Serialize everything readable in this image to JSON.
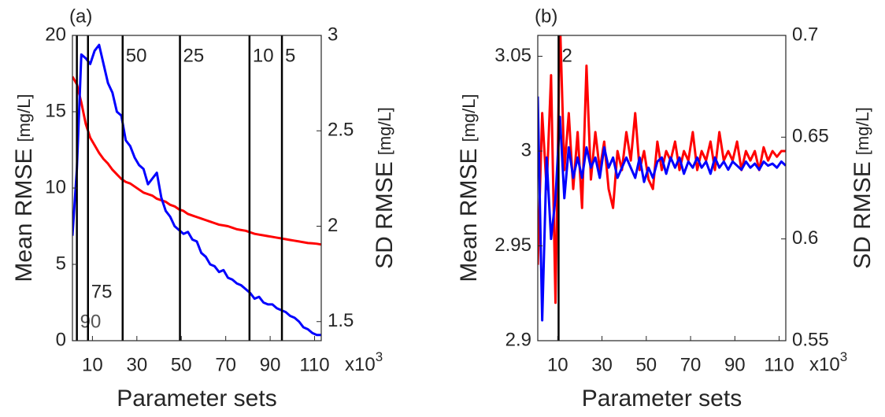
{
  "chart_data": [
    {
      "type": "line",
      "panel_label": "(a)",
      "xlabel": "Parameter sets",
      "x_multiplier": "x10",
      "x_multiplier_exp": "3",
      "ylabel": "Mean RMSE",
      "ylabel_unit": "[mg/L]",
      "y2label": "SD RMSE",
      "y2label_unit": "[mg/L]",
      "xlim": [
        1,
        113
      ],
      "xticks": [
        10,
        30,
        50,
        70,
        90,
        110
      ],
      "ylim": [
        0,
        20
      ],
      "yticks": [
        0,
        5,
        10,
        15,
        20
      ],
      "y2lim": [
        1.4,
        3
      ],
      "y2ticks": [
        1.5,
        2,
        2.5,
        3
      ],
      "x": [
        1,
        3,
        5,
        7,
        9,
        11,
        13,
        15,
        17,
        19,
        21,
        23,
        25,
        27,
        29,
        31,
        33,
        35,
        37,
        39,
        41,
        43,
        45,
        47,
        49,
        51,
        53,
        55,
        57,
        59,
        61,
        63,
        65,
        67,
        69,
        71,
        73,
        75,
        77,
        79,
        81,
        83,
        85,
        87,
        89,
        91,
        93,
        95,
        97,
        99,
        101,
        103,
        105,
        107,
        109,
        111,
        113
      ],
      "series": [
        {
          "color": "#ff0000",
          "values": [
            17.3,
            16.8,
            15.6,
            14.2,
            13.3,
            12.8,
            12.3,
            11.9,
            11.6,
            11.2,
            10.9,
            10.6,
            10.4,
            10.3,
            10.1,
            9.9,
            9.7,
            9.6,
            9.5,
            9.3,
            9.2,
            9.1,
            8.9,
            8.8,
            8.6,
            8.5,
            8.3,
            8.2,
            8.1,
            8,
            7.9,
            7.8,
            7.7,
            7.6,
            7.55,
            7.5,
            7.4,
            7.3,
            7.25,
            7.2,
            7.1,
            7,
            6.95,
            6.9,
            6.85,
            6.8,
            6.75,
            6.7,
            6.65,
            6.6,
            6.55,
            6.5,
            6.45,
            6.4,
            6.38,
            6.35,
            6.3
          ]
        },
        {
          "color": "#0000ff",
          "axis": "y2",
          "values": [
            1.95,
            2.3,
            2.9,
            2.88,
            2.85,
            2.92,
            2.95,
            2.85,
            2.75,
            2.7,
            2.6,
            2.58,
            2.45,
            2.42,
            2.36,
            2.32,
            2.3,
            2.22,
            2.25,
            2.28,
            2.15,
            2.08,
            2.05,
            2,
            1.98,
            1.96,
            1.97,
            1.93,
            1.92,
            1.86,
            1.84,
            1.8,
            1.79,
            1.76,
            1.77,
            1.73,
            1.72,
            1.7,
            1.69,
            1.67,
            1.65,
            1.62,
            1.63,
            1.6,
            1.59,
            1.59,
            1.57,
            1.56,
            1.55,
            1.53,
            1.52,
            1.5,
            1.47,
            1.46,
            1.44,
            1.43,
            1.43
          ]
        }
      ],
      "vlines": [
        {
          "x": 3,
          "label": "90"
        },
        {
          "x": 8,
          "label": "75"
        },
        {
          "x": 23.6,
          "label": "50"
        },
        {
          "x": 49.4,
          "label": "25"
        },
        {
          "x": 80.7,
          "label": "10"
        },
        {
          "x": 95.3,
          "label": "5"
        }
      ]
    },
    {
      "type": "line",
      "panel_label": "(b)",
      "xlabel": "Parameter sets",
      "x_multiplier": "x10",
      "x_multiplier_exp": "3",
      "ylabel": "Mean RMSE",
      "ylabel_unit": "[mg/L]",
      "y2label": "SD RMSE",
      "y2label_unit": "[mg/L]",
      "xlim": [
        1,
        113
      ],
      "xticks": [
        10,
        30,
        50,
        70,
        90,
        110
      ],
      "ylim": [
        2.9,
        3.061
      ],
      "yticks": [
        2.9,
        2.95,
        3,
        3.05
      ],
      "y2lim": [
        0.55,
        0.7
      ],
      "y2ticks": [
        0.55,
        0.6,
        0.65,
        0.7
      ],
      "x": [
        1,
        3,
        5,
        7,
        9,
        11,
        13,
        15,
        17,
        19,
        21,
        23,
        25,
        27,
        29,
        31,
        33,
        35,
        37,
        39,
        41,
        43,
        45,
        47,
        49,
        51,
        53,
        55,
        57,
        59,
        61,
        63,
        65,
        67,
        69,
        71,
        73,
        75,
        77,
        79,
        81,
        83,
        85,
        87,
        89,
        91,
        93,
        95,
        97,
        99,
        101,
        103,
        105,
        107,
        109,
        111,
        113
      ],
      "series": [
        {
          "color": "#ff0000",
          "values": [
            2.94,
            3.02,
            2.98,
            3.04,
            2.92,
            3.07,
            2.99,
            3.02,
            2.98,
            3.01,
            2.97,
            3.045,
            2.985,
            3.01,
            2.99,
            3.005,
            2.98,
            2.97,
            3,
            2.99,
            3.01,
            2.995,
            3.02,
            2.99,
            3,
            2.985,
            2.98,
            3.005,
            2.99,
            3,
            2.995,
            3.005,
            2.99,
            3,
            2.995,
            3.01,
            2.99,
            3,
            2.995,
            3.005,
            2.99,
            3.01,
            2.995,
            3,
            2.995,
            3.005,
            2.99,
            3,
            2.995,
            3,
            2.99,
            3.002,
            2.995,
            3,
            2.997,
            3,
            3
          ]
        },
        {
          "color": "#0000ff",
          "axis": "y2",
          "values": [
            0.67,
            0.56,
            0.64,
            0.6,
            0.62,
            0.66,
            0.62,
            0.645,
            0.63,
            0.64,
            0.63,
            0.645,
            0.635,
            0.64,
            0.63,
            0.645,
            0.635,
            0.64,
            0.63,
            0.635,
            0.64,
            0.635,
            0.63,
            0.64,
            0.628,
            0.635,
            0.63,
            0.638,
            0.64,
            0.632,
            0.64,
            0.635,
            0.64,
            0.632,
            0.638,
            0.635,
            0.64,
            0.635,
            0.638,
            0.632,
            0.64,
            0.635,
            0.638,
            0.634,
            0.638,
            0.636,
            0.634,
            0.638,
            0.635,
            0.637,
            0.634,
            0.638,
            0.636,
            0.637,
            0.635,
            0.638,
            0.636
          ]
        }
      ],
      "vlines": [
        {
          "x": 10.4,
          "label": "2"
        }
      ]
    }
  ]
}
